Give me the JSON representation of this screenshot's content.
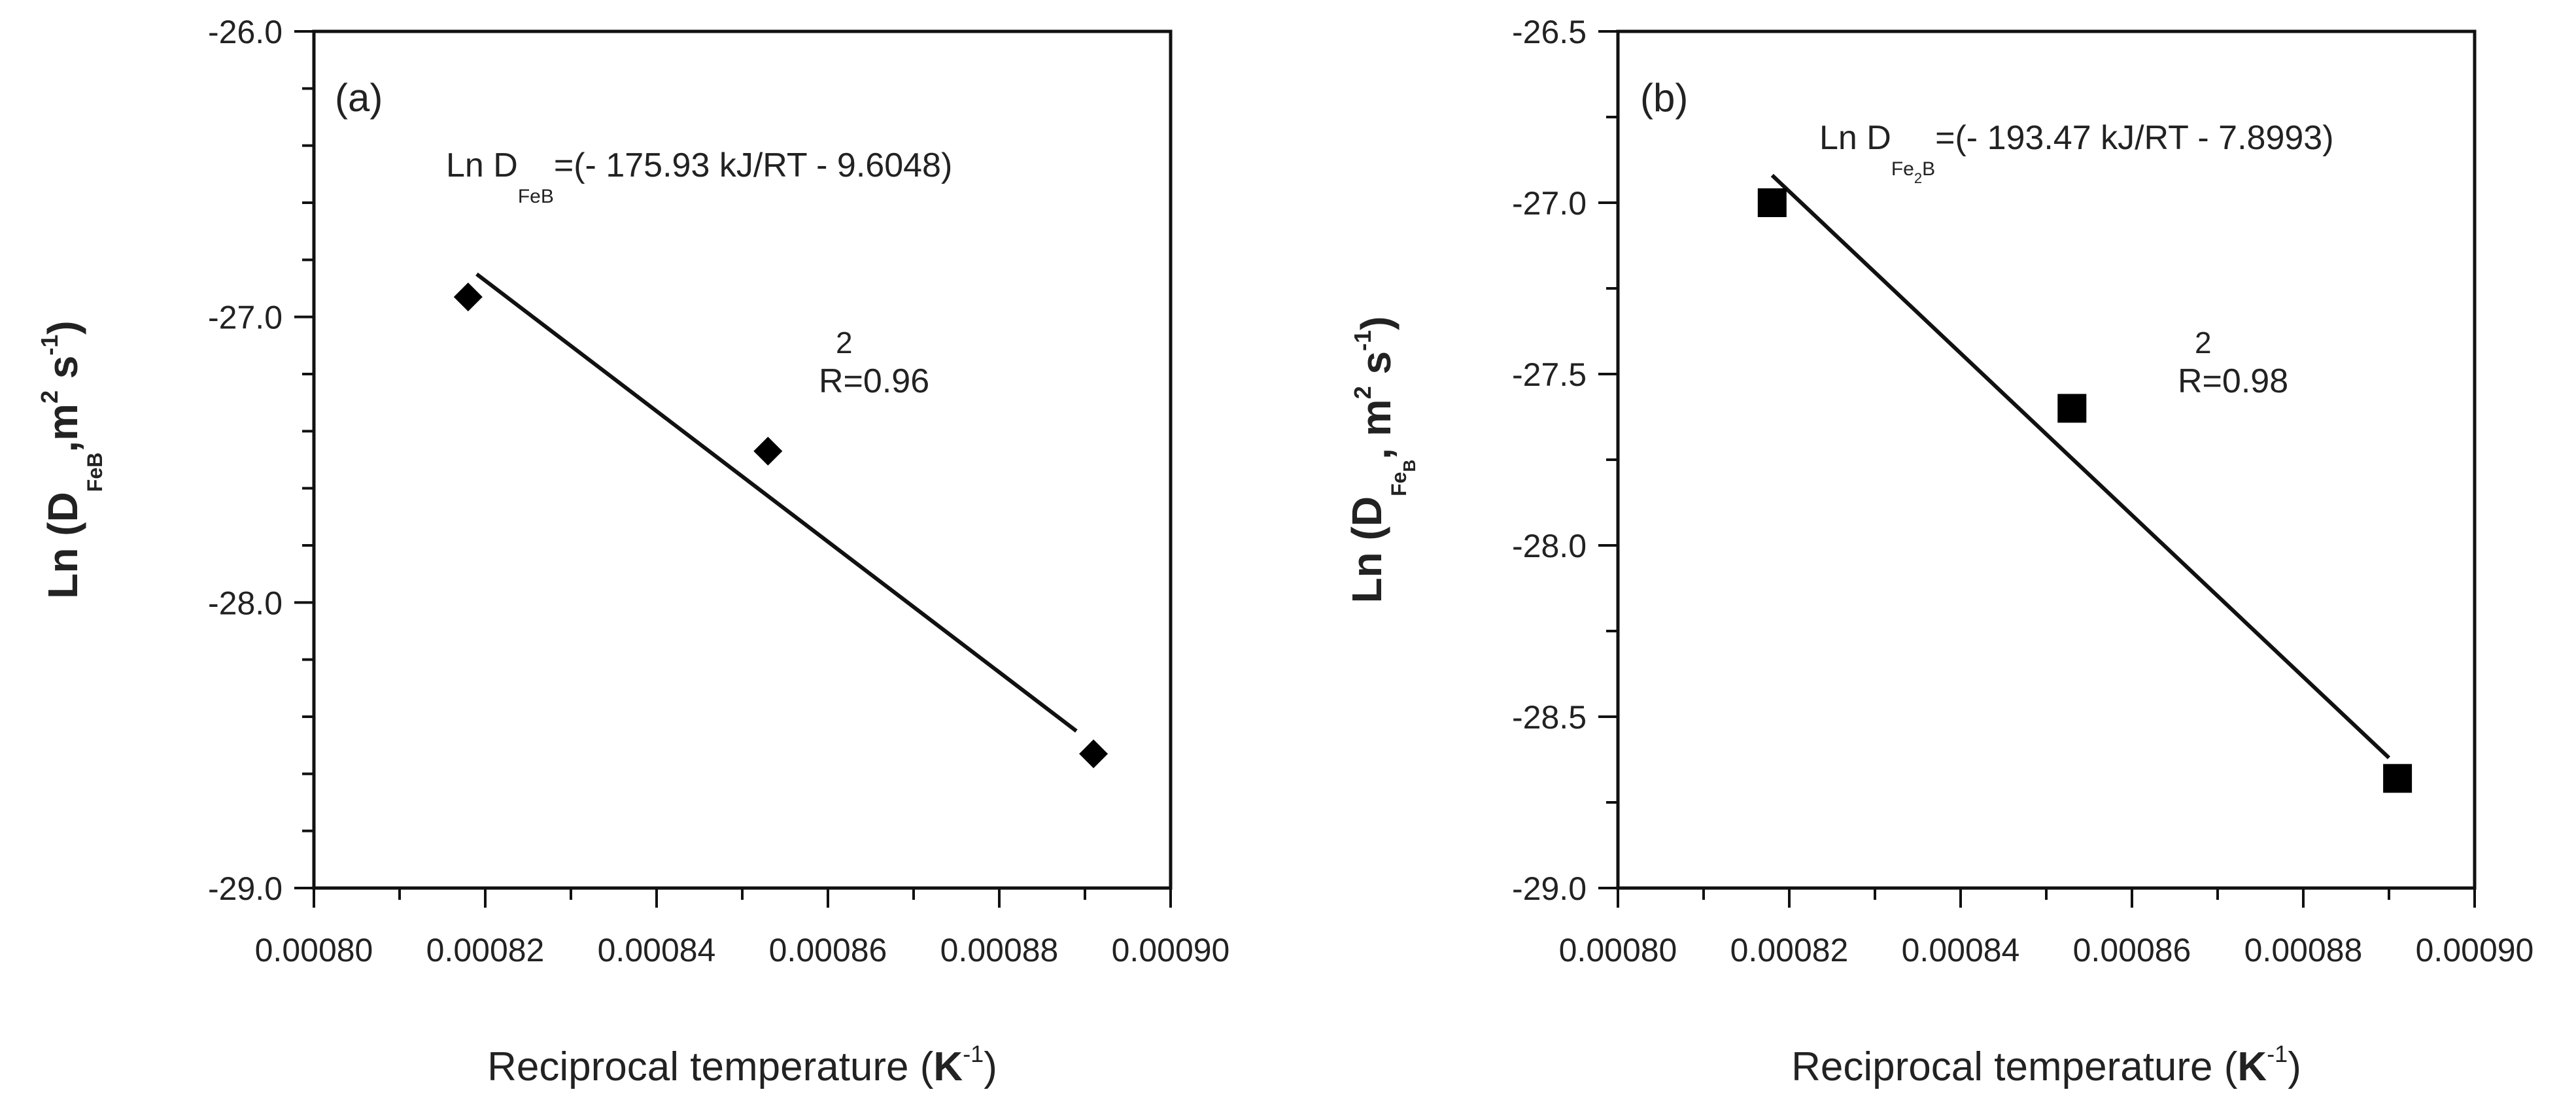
{
  "chart_data": [
    {
      "type": "scatter",
      "panel_label": "(a)",
      "xlabel_main": "Reciprocal temperature (",
      "xlabel_unit": "K",
      "xlabel_exp": "-1",
      "xlabel_close": ")",
      "ylabel_main": "Ln (D",
      "ylabel_sub": "FeB",
      "ylabel_sub2": "",
      "ylabel_mid": ",m",
      "ylabel_exp1": "2",
      "ylabel_s": " s",
      "ylabel_exp2": "-1",
      "ylabel_close": ")",
      "xlim": [
        0.0008,
        0.0009
      ],
      "ylim": [
        -29.0,
        -26.0
      ],
      "xticks": [
        "0.00080",
        "0.00082",
        "0.00084",
        "0.00086",
        "0.00088",
        "0.00090"
      ],
      "yticks": [
        "-29.0",
        "-28.0",
        "-27.0",
        "-26.0"
      ],
      "ytick_values": [
        -29.0,
        -28.0,
        -27.0,
        -26.0
      ],
      "marker": "diamond",
      "points": [
        {
          "x": 0.000818,
          "y": -26.93
        },
        {
          "x": 0.000853,
          "y": -27.47
        },
        {
          "x": 0.000891,
          "y": -28.53
        }
      ],
      "fit_line": {
        "x": [
          0.000819,
          0.000889
        ],
        "y": [
          -26.85,
          -28.45
        ]
      },
      "equation": {
        "prefix": "Ln D",
        "sub": "FeB",
        "sub2": "",
        "subtail": "",
        "body": "=(- 175.93 kJ/RT - 9.6048)"
      },
      "r2": {
        "sup": "2",
        "text": "R=0.96"
      }
    },
    {
      "type": "scatter",
      "panel_label": "(b)",
      "xlabel_main": "Reciprocal temperature (",
      "xlabel_unit": "K",
      "xlabel_exp": "-1",
      "xlabel_close": ")",
      "ylabel_main": "Ln (D",
      "ylabel_sub": "Fe",
      "ylabel_sub2": "B",
      "ylabel_mid": ", m",
      "ylabel_exp1": "2",
      "ylabel_s": " s",
      "ylabel_exp2": "-1",
      "ylabel_close": ")",
      "xlim": [
        0.0008,
        0.0009
      ],
      "ylim": [
        -29.0,
        -26.5
      ],
      "xticks": [
        "0.00080",
        "0.00082",
        "0.00084",
        "0.00086",
        "0.00088",
        "0.00090"
      ],
      "yticks": [
        "-29.0",
        "-28.5",
        "-28.0",
        "-27.5",
        "-27.0",
        "-26.5"
      ],
      "ytick_values": [
        -29.0,
        -28.5,
        -28.0,
        -27.5,
        -27.0,
        -26.5
      ],
      "marker": "square",
      "points": [
        {
          "x": 0.000818,
          "y": -27.0
        },
        {
          "x": 0.000853,
          "y": -27.6
        },
        {
          "x": 0.000891,
          "y": -28.68
        }
      ],
      "fit_line": {
        "x": [
          0.000818,
          0.00089
        ],
        "y": [
          -26.92,
          -28.62
        ]
      },
      "equation": {
        "prefix": "Ln D",
        "sub": "Fe",
        "sub2": "2",
        "subtail": "B",
        "body": "=(- 193.47 kJ/RT - 7.8993)"
      },
      "r2": {
        "sup": "2",
        "text": "R=0.98"
      }
    }
  ]
}
